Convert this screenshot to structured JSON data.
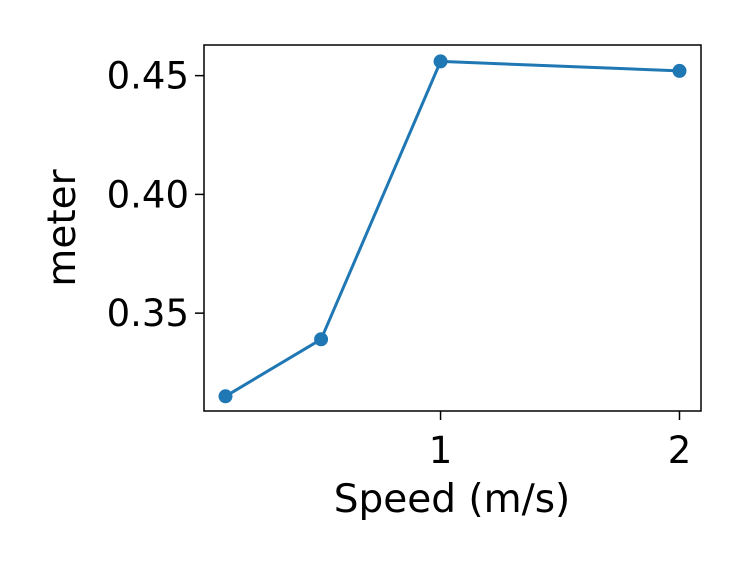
{
  "chart_data": {
    "type": "line",
    "title": "",
    "xlabel": "Speed (m/s)",
    "ylabel": "meter",
    "x": [
      0.1,
      0.5,
      1,
      2
    ],
    "series": [
      {
        "name": "",
        "values": [
          0.315,
          0.339,
          0.456,
          0.452
        ]
      }
    ],
    "xlim": [
      0.01,
      2.09
    ],
    "ylim": [
      0.3088,
      0.4629
    ],
    "xticks": [
      1,
      2
    ],
    "xtick_labels": [
      "1",
      "2"
    ],
    "yticks": [
      0.35,
      0.4,
      0.45
    ],
    "ytick_labels": [
      "0.35",
      "0.40",
      "0.45"
    ],
    "grid": false,
    "legend": "none",
    "line_color": "#1f77b4",
    "marker": "circle"
  }
}
